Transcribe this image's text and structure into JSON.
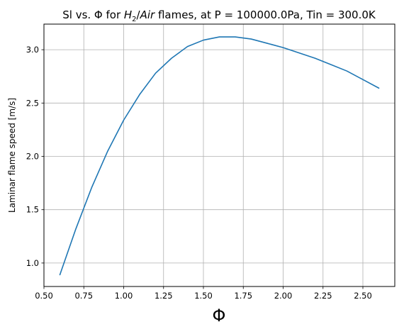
{
  "chart_data": {
    "type": "line",
    "title": {
      "prefix": "Sl vs. Φ for ",
      "h": "H",
      "h_sub": "2",
      "slash": "/",
      "air": "Air",
      "suffix": " flames, at P = 100000.0Pa, Tin = 300.0K"
    },
    "xlabel": "Φ",
    "ylabel": "Laminar flame speed [m/s]",
    "xlim": [
      0.5,
      2.7
    ],
    "ylim": [
      0.78,
      3.24
    ],
    "xticks": [
      0.5,
      0.75,
      1.0,
      1.25,
      1.5,
      1.75,
      2.0,
      2.25,
      2.5
    ],
    "xtick_labels": [
      "0.50",
      "0.75",
      "1.00",
      "1.25",
      "1.50",
      "1.75",
      "2.00",
      "2.25",
      "2.50"
    ],
    "yticks": [
      1.0,
      1.5,
      2.0,
      2.5,
      3.0
    ],
    "ytick_labels": [
      "1.0",
      "1.5",
      "2.0",
      "2.5",
      "3.0"
    ],
    "grid": true,
    "series": [
      {
        "color": "#1f77b4",
        "x": [
          0.6,
          0.7,
          0.8,
          0.9,
          1.0,
          1.1,
          1.2,
          1.3,
          1.4,
          1.5,
          1.6,
          1.7,
          1.8,
          1.9,
          2.0,
          2.1,
          2.2,
          2.3,
          2.4,
          2.5,
          2.6
        ],
        "y": [
          0.89,
          1.32,
          1.71,
          2.05,
          2.34,
          2.58,
          2.78,
          2.92,
          3.03,
          3.09,
          3.12,
          3.12,
          3.1,
          3.06,
          3.02,
          2.97,
          2.92,
          2.86,
          2.8,
          2.72,
          2.64
        ]
      }
    ]
  }
}
